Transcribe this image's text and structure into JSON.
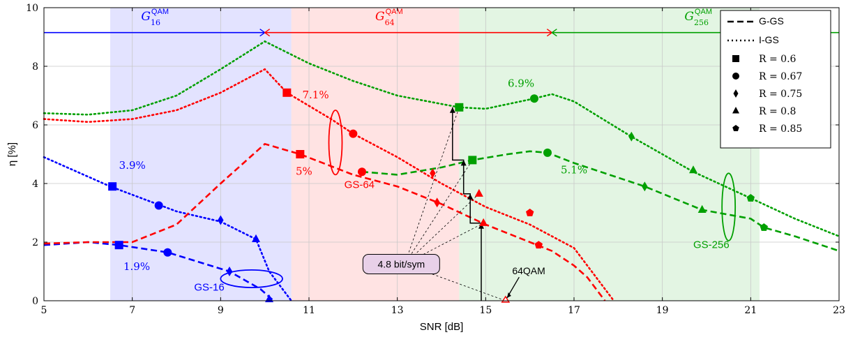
{
  "chart_data": {
    "type": "line",
    "xlabel": "SNR [dB]",
    "ylabel": "η [%]",
    "xlim": [
      5,
      23
    ],
    "ylim": [
      0,
      10
    ],
    "xticks": [
      "5",
      "7",
      "9",
      "11",
      "13",
      "15",
      "17",
      "19",
      "21",
      "23"
    ],
    "yticks": [
      "0",
      "2",
      "4",
      "6",
      "8",
      "10"
    ],
    "grid": true,
    "legend_position": "top-right",
    "legend_linestyles": [
      {
        "label": "G-GS",
        "dash": "dashed"
      },
      {
        "label": "I-GS",
        "dash": "dotted"
      }
    ],
    "legend_markers": [
      {
        "label": "R = 0.6",
        "marker": "square"
      },
      {
        "label": "R = 0.67",
        "marker": "circle"
      },
      {
        "label": "R = 0.75",
        "marker": "diamond"
      },
      {
        "label": "R = 0.8",
        "marker": "triangle"
      },
      {
        "label": "R = 0.85",
        "marker": "pentagon"
      }
    ],
    "regions": [
      {
        "x_start": 6.5,
        "x_end": 10.6,
        "color": "#0000ff",
        "label_base": "G",
        "label_sup": "QAM",
        "label_sub": "16",
        "label_x": 7.2
      },
      {
        "x_start": 10.6,
        "x_end": 14.4,
        "color": "#ff0000",
        "label_base": "G",
        "label_sup": "QAM",
        "label_sub": "64",
        "label_x": 12.5
      },
      {
        "x_start": 14.4,
        "x_end": 21.2,
        "color": "#00a000",
        "label_base": "G",
        "label_sup": "QAM",
        "label_sub": "256",
        "label_x": 19.5
      }
    ],
    "arrows": [
      {
        "x_start": 5.0,
        "x_end": 10.0,
        "y": 9.15,
        "color": "#0000ff"
      },
      {
        "x_start": 10.0,
        "x_end": 16.5,
        "y": 9.15,
        "color": "#ff0000"
      },
      {
        "x_start": 16.5,
        "x_end": 23.0,
        "y": 9.15,
        "color": "#00a000"
      }
    ],
    "series": [
      {
        "name": "",
        "family": "GS-16",
        "kind": "I-GS",
        "color": "#0000ff",
        "dash": "dotted",
        "x": [
          5.0,
          6.5,
          8.0,
          9.0,
          9.8,
          10.1,
          10.6
        ],
        "y": [
          4.9,
          3.9,
          3.05,
          2.7,
          2.1,
          1.0,
          0.0
        ]
      },
      {
        "name": "",
        "family": "GS-16",
        "kind": "G-GS",
        "color": "#0000ff",
        "dash": "dashed",
        "x": [
          5.0,
          6.0,
          6.7,
          7.8,
          9.2,
          9.9,
          10.2
        ],
        "y": [
          1.9,
          2.0,
          1.9,
          1.65,
          1.0,
          0.4,
          0.0
        ]
      },
      {
        "name": "",
        "family": "GS-64",
        "kind": "I-GS",
        "color": "#ff0000",
        "dash": "dotted",
        "x": [
          5.0,
          6.0,
          7.0,
          8.0,
          9.0,
          10.0,
          10.5,
          11.5,
          12.0,
          13.0,
          14.0,
          15.0,
          16.0,
          17.0,
          17.5,
          17.9
        ],
        "y": [
          6.2,
          6.1,
          6.2,
          6.5,
          7.1,
          7.9,
          7.1,
          6.2,
          5.7,
          4.9,
          4.0,
          3.2,
          2.6,
          1.8,
          0.8,
          0.0
        ]
      },
      {
        "name": "",
        "family": "GS-64",
        "kind": "G-GS",
        "color": "#ff0000",
        "dash": "dashed",
        "x": [
          5.0,
          6.0,
          7.0,
          8.0,
          9.0,
          10.0,
          10.8,
          12.0,
          13.0,
          14.0,
          15.0,
          16.0,
          16.5,
          17.0,
          17.3,
          17.7
        ],
        "y": [
          1.95,
          2.0,
          2.0,
          2.6,
          4.0,
          5.35,
          5.0,
          4.3,
          3.9,
          3.3,
          2.6,
          2.0,
          1.7,
          1.2,
          0.8,
          0.0
        ]
      },
      {
        "name": "",
        "family": "GS-256",
        "kind": "I-GS",
        "color": "#00a000",
        "dash": "dotted",
        "x": [
          5.0,
          6.0,
          7.0,
          8.0,
          9.0,
          10.0,
          11.0,
          12.0,
          13.0,
          14.4,
          15.0,
          16.1,
          16.5,
          17.0,
          18.3,
          19.7,
          21.0,
          22.0,
          23.0
        ],
        "y": [
          6.4,
          6.35,
          6.5,
          7.0,
          7.9,
          8.85,
          8.1,
          7.5,
          7.0,
          6.6,
          6.55,
          6.9,
          7.05,
          6.8,
          5.6,
          4.4,
          3.5,
          2.8,
          2.2
        ]
      },
      {
        "name": "",
        "family": "GS-256",
        "kind": "G-GS",
        "color": "#00a000",
        "dash": "dashed",
        "x": [
          12.2,
          13.0,
          14.0,
          14.7,
          15.5,
          16.0,
          16.4,
          17.0,
          18.0,
          18.6,
          19.9,
          21.0,
          21.3,
          22.0,
          23.0
        ],
        "y": [
          4.4,
          4.3,
          4.55,
          4.8,
          5.0,
          5.1,
          5.05,
          4.7,
          4.2,
          3.9,
          3.1,
          2.8,
          2.5,
          2.2,
          1.7
        ]
      }
    ],
    "markers": [
      {
        "color": "#0000ff",
        "shape": "square",
        "x": 6.55,
        "y": 3.9
      },
      {
        "color": "#0000ff",
        "shape": "circle",
        "x": 7.6,
        "y": 3.25
      },
      {
        "color": "#0000ff",
        "shape": "diamond",
        "x": 9.0,
        "y": 2.75
      },
      {
        "color": "#0000ff",
        "shape": "triangle",
        "x": 9.8,
        "y": 2.1
      },
      {
        "color": "#0000ff",
        "shape": "square",
        "x": 6.7,
        "y": 1.9
      },
      {
        "color": "#0000ff",
        "shape": "circle",
        "x": 7.8,
        "y": 1.65
      },
      {
        "color": "#0000ff",
        "shape": "diamond",
        "x": 9.2,
        "y": 1.0
      },
      {
        "color": "#0000ff",
        "shape": "triangle",
        "x": 10.1,
        "y": 0.05
      },
      {
        "color": "#ff0000",
        "shape": "square",
        "x": 10.5,
        "y": 7.1
      },
      {
        "color": "#ff0000",
        "shape": "circle",
        "x": 12.0,
        "y": 5.7
      },
      {
        "color": "#ff0000",
        "shape": "diamond",
        "x": 13.8,
        "y": 4.35
      },
      {
        "color": "#ff0000",
        "shape": "triangle",
        "x": 14.85,
        "y": 3.65
      },
      {
        "color": "#ff0000",
        "shape": "pentagon",
        "x": 16.0,
        "y": 3.0
      },
      {
        "color": "#ff0000",
        "shape": "square",
        "x": 10.8,
        "y": 5.0
      },
      {
        "color": "#ff0000",
        "shape": "circle",
        "x": 12.2,
        "y": 4.4
      },
      {
        "color": "#ff0000",
        "shape": "diamond",
        "x": 13.9,
        "y": 3.35
      },
      {
        "color": "#ff0000",
        "shape": "triangle",
        "x": 14.95,
        "y": 2.65
      },
      {
        "color": "#ff0000",
        "shape": "pentagon",
        "x": 16.2,
        "y": 1.9
      },
      {
        "color": "#00a000",
        "shape": "square",
        "x": 14.4,
        "y": 6.6
      },
      {
        "color": "#00a000",
        "shape": "circle",
        "x": 16.1,
        "y": 6.9
      },
      {
        "color": "#00a000",
        "shape": "diamond",
        "x": 18.3,
        "y": 5.6
      },
      {
        "color": "#00a000",
        "shape": "triangle",
        "x": 19.7,
        "y": 4.45
      },
      {
        "color": "#00a000",
        "shape": "pentagon",
        "x": 21.0,
        "y": 3.5
      },
      {
        "color": "#00a000",
        "shape": "square",
        "x": 14.7,
        "y": 4.8
      },
      {
        "color": "#00a000",
        "shape": "circle",
        "x": 16.4,
        "y": 5.05
      },
      {
        "color": "#00a000",
        "shape": "diamond",
        "x": 18.6,
        "y": 3.9
      },
      {
        "color": "#00a000",
        "shape": "triangle",
        "x": 19.9,
        "y": 3.1
      },
      {
        "color": "#00a000",
        "shape": "pentagon",
        "x": 21.3,
        "y": 2.5
      }
    ],
    "annotations": [
      {
        "text": "3.9%",
        "color": "#0000ff",
        "font": "serif",
        "x": 6.7,
        "y": 4.5
      },
      {
        "text": "1.9%",
        "color": "#0000ff",
        "font": "serif",
        "x": 6.8,
        "y": 1.05
      },
      {
        "text": "GS-16",
        "color": "#0000ff",
        "font": "sans",
        "x": 8.4,
        "y": 0.35
      },
      {
        "text": "7.1%",
        "color": "#ff0000",
        "font": "serif",
        "x": 10.85,
        "y": 6.9
      },
      {
        "text": "5%",
        "color": "#ff0000",
        "font": "serif",
        "x": 10.7,
        "y": 4.3
      },
      {
        "text": "GS-64",
        "color": "#ff0000",
        "font": "sans",
        "x": 11.8,
        "y": 3.85
      },
      {
        "text": "6.9%",
        "color": "#00a000",
        "font": "serif",
        "x": 15.5,
        "y": 7.3
      },
      {
        "text": "5.1%",
        "color": "#00a000",
        "font": "serif",
        "x": 16.7,
        "y": 4.35
      },
      {
        "text": "GS-256",
        "color": "#00a000",
        "font": "sans",
        "x": 19.7,
        "y": 1.8
      }
    ],
    "ellipses": [
      {
        "color": "#0000ff",
        "cx": 9.7,
        "cy": 0.75,
        "rx": 0.7,
        "ry": 0.3
      },
      {
        "color": "#ff0000",
        "cx": 11.6,
        "cy": 5.4,
        "rx": 0.15,
        "ry": 1.1
      },
      {
        "color": "#00a000",
        "cx": 20.5,
        "cy": 3.2,
        "rx": 0.15,
        "ry": 1.15
      }
    ],
    "callout": {
      "text": "4.8 bit/sym",
      "x": 12.3,
      "y": 1.25,
      "targets": [
        [
          14.4,
          6.6
        ],
        [
          14.7,
          4.8
        ],
        [
          14.85,
          3.65
        ],
        [
          14.95,
          2.65
        ],
        [
          15.45,
          0.0
        ]
      ]
    },
    "staircase": [
      [
        14.9,
        0.0
      ],
      [
        14.9,
        2.65
      ],
      [
        14.65,
        2.65
      ],
      [
        14.65,
        3.65
      ],
      [
        14.5,
        3.65
      ],
      [
        14.5,
        4.8
      ],
      [
        14.25,
        4.8
      ],
      [
        14.25,
        6.6
      ]
    ],
    "point_64qam": {
      "label": "64QAM",
      "x": 15.45,
      "y": 0.0,
      "label_x": 15.6,
      "label_y": 0.9
    }
  }
}
